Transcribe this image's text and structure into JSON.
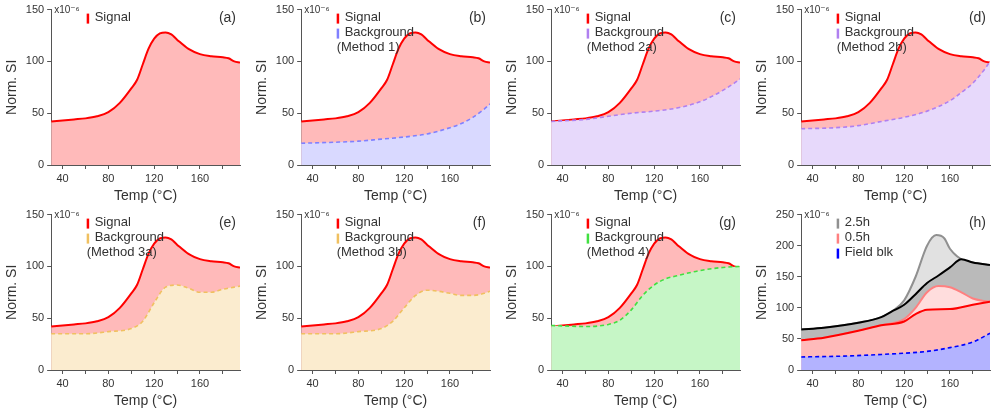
{
  "chart_data": [
    {
      "type": "area",
      "annotations": [
        "x10⁻⁶",
        "(a)"
      ],
      "xlabel": "Temp (°C)",
      "ylabel": "Norm. SI",
      "xlim": [
        30,
        195
      ],
      "ylim": [
        0,
        150
      ],
      "xticks": [
        40,
        {
          "value": 60,
          "label": null
        },
        80,
        {
          "value": 100,
          "label": null
        },
        120,
        {
          "value": 140,
          "label": null
        },
        160,
        {
          "value": 180,
          "label": null
        }
      ],
      "yticks": [
        0,
        50,
        100,
        150
      ],
      "grid": false,
      "legend": "top left",
      "marker": "none",
      "series": [
        {
          "name": "Signal",
          "color": "#ff0000",
          "line_style": "solid",
          "x": [
            30,
            40,
            50,
            60,
            70,
            80,
            90,
            100,
            105,
            110,
            115,
            120,
            125,
            130,
            135,
            140,
            150,
            160,
            170,
            180,
            185,
            190,
            195
          ],
          "values": [
            42,
            43,
            44,
            45,
            47,
            51,
            60,
            74,
            82,
            97,
            112,
            122,
            127,
            128,
            126,
            121,
            112,
            107,
            105,
            104,
            103,
            100,
            99
          ]
        }
      ]
    },
    {
      "type": "area",
      "annotations": [
        "x10⁻⁶",
        "(b)"
      ],
      "xlabel": "Temp (°C)",
      "ylabel": "Norm. SI",
      "xlim": [
        30,
        195
      ],
      "ylim": [
        0,
        150
      ],
      "xticks": [
        40,
        {
          "value": 60,
          "label": null
        },
        80,
        {
          "value": 100,
          "label": null
        },
        120,
        {
          "value": 140,
          "label": null
        },
        160,
        {
          "value": 180,
          "label": null
        }
      ],
      "yticks": [
        0,
        50,
        100,
        150
      ],
      "grid": false,
      "legend": "top left",
      "marker": "none",
      "series": [
        {
          "name": "Signal",
          "color": "#ff0000",
          "line_style": "solid",
          "x": [
            30,
            40,
            50,
            60,
            70,
            80,
            90,
            100,
            105,
            110,
            115,
            120,
            125,
            130,
            135,
            140,
            150,
            160,
            170,
            180,
            185,
            190,
            195
          ],
          "values": [
            42,
            43,
            44,
            45,
            47,
            51,
            60,
            74,
            82,
            97,
            112,
            122,
            127,
            128,
            126,
            121,
            112,
            107,
            105,
            104,
            103,
            100,
            99
          ]
        },
        {
          "name": "Background (Method 1)",
          "color": "#8080ff",
          "line_style": "dashed",
          "x": [
            30,
            60,
            80,
            100,
            120,
            140,
            160,
            170,
            180,
            190,
            195
          ],
          "values": [
            21,
            22,
            23,
            25,
            27,
            30,
            36,
            40,
            46,
            54,
            59
          ]
        }
      ]
    },
    {
      "type": "area",
      "annotations": [
        "x10⁻⁶",
        "(c)"
      ],
      "xlabel": "Temp (°C)",
      "ylabel": "Norm. SI",
      "xlim": [
        30,
        195
      ],
      "ylim": [
        0,
        150
      ],
      "xticks": [
        40,
        {
          "value": 60,
          "label": null
        },
        80,
        {
          "value": 100,
          "label": null
        },
        120,
        {
          "value": 140,
          "label": null
        },
        160,
        {
          "value": 180,
          "label": null
        }
      ],
      "yticks": [
        0,
        50,
        100,
        150
      ],
      "grid": false,
      "legend": "top left",
      "marker": "none",
      "series": [
        {
          "name": "Signal",
          "color": "#ff0000",
          "line_style": "solid",
          "x": [
            30,
            40,
            50,
            60,
            70,
            80,
            90,
            100,
            105,
            110,
            115,
            120,
            125,
            130,
            135,
            140,
            150,
            160,
            170,
            180,
            185,
            190,
            195
          ],
          "values": [
            42,
            43,
            44,
            45,
            47,
            51,
            60,
            74,
            82,
            97,
            112,
            122,
            127,
            128,
            126,
            121,
            112,
            107,
            105,
            104,
            103,
            100,
            99
          ]
        },
        {
          "name": "Background (Method 2a)",
          "color": "#b080f0",
          "line_style": "dashed",
          "x": [
            30,
            60,
            80,
            100,
            120,
            140,
            160,
            170,
            180,
            190,
            195
          ],
          "values": [
            42,
            44,
            47,
            50,
            52,
            55,
            61,
            66,
            72,
            79,
            83
          ]
        }
      ]
    },
    {
      "type": "area",
      "annotations": [
        "x10⁻⁶",
        "(d)"
      ],
      "xlabel": "Temp (°C)",
      "ylabel": "Norm. SI",
      "xlim": [
        30,
        195
      ],
      "ylim": [
        0,
        150
      ],
      "xticks": [
        40,
        {
          "value": 60,
          "label": null
        },
        80,
        {
          "value": 100,
          "label": null
        },
        120,
        {
          "value": 140,
          "label": null
        },
        160,
        {
          "value": 180,
          "label": null
        }
      ],
      "yticks": [
        0,
        50,
        100,
        150
      ],
      "grid": false,
      "legend": "top left",
      "marker": "none",
      "series": [
        {
          "name": "Signal",
          "color": "#ff0000",
          "line_style": "solid",
          "x": [
            30,
            40,
            50,
            60,
            70,
            80,
            90,
            100,
            105,
            110,
            115,
            120,
            125,
            130,
            135,
            140,
            150,
            160,
            170,
            180,
            185,
            190,
            195
          ],
          "values": [
            42,
            43,
            44,
            45,
            47,
            51,
            60,
            74,
            82,
            97,
            112,
            122,
            127,
            128,
            126,
            121,
            112,
            107,
            105,
            104,
            103,
            100,
            99
          ]
        },
        {
          "name": "Background (Method 2b)",
          "color": "#b080f0",
          "line_style": "dashed",
          "x": [
            30,
            60,
            80,
            100,
            120,
            140,
            160,
            170,
            180,
            190,
            195
          ],
          "values": [
            35,
            36,
            38,
            42,
            46,
            52,
            62,
            70,
            79,
            92,
            100
          ]
        }
      ]
    },
    {
      "type": "area",
      "annotations": [
        "x10⁻⁶",
        "(e)"
      ],
      "xlabel": "Temp (°C)",
      "ylabel": "Norm. SI",
      "xlim": [
        30,
        195
      ],
      "ylim": [
        0,
        150
      ],
      "xticks": [
        40,
        {
          "value": 60,
          "label": null
        },
        80,
        {
          "value": 100,
          "label": null
        },
        120,
        {
          "value": 140,
          "label": null
        },
        160,
        {
          "value": 180,
          "label": null
        }
      ],
      "yticks": [
        0,
        50,
        100,
        150
      ],
      "grid": false,
      "legend": "top left",
      "marker": "none",
      "series": [
        {
          "name": "Signal",
          "color": "#ff0000",
          "line_style": "solid",
          "x": [
            30,
            40,
            50,
            60,
            70,
            80,
            90,
            100,
            105,
            110,
            115,
            120,
            125,
            130,
            135,
            140,
            150,
            160,
            170,
            180,
            185,
            190,
            195
          ],
          "values": [
            42,
            43,
            44,
            45,
            47,
            51,
            60,
            74,
            82,
            97,
            112,
            122,
            127,
            128,
            126,
            121,
            112,
            107,
            105,
            104,
            103,
            100,
            99
          ]
        },
        {
          "name": "Background (Method 3a)",
          "color": "#f0c060",
          "line_style": "dashed",
          "x": [
            30,
            60,
            80,
            100,
            110,
            120,
            130,
            140,
            150,
            160,
            170,
            180,
            190,
            195
          ],
          "values": [
            35,
            35,
            37,
            40,
            47,
            65,
            80,
            82,
            79,
            75,
            75,
            78,
            80,
            81
          ]
        }
      ]
    },
    {
      "type": "area",
      "annotations": [
        "x10⁻⁶",
        "(f)"
      ],
      "xlabel": "Temp (°C)",
      "ylabel": "Norm. SI",
      "xlim": [
        30,
        195
      ],
      "ylim": [
        0,
        150
      ],
      "xticks": [
        40,
        {
          "value": 60,
          "label": null
        },
        80,
        {
          "value": 100,
          "label": null
        },
        120,
        {
          "value": 140,
          "label": null
        },
        160,
        {
          "value": 180,
          "label": null
        }
      ],
      "yticks": [
        0,
        50,
        100,
        150
      ],
      "grid": false,
      "legend": "top left",
      "marker": "none",
      "series": [
        {
          "name": "Signal",
          "color": "#ff0000",
          "line_style": "solid",
          "x": [
            30,
            40,
            50,
            60,
            70,
            80,
            90,
            100,
            105,
            110,
            115,
            120,
            125,
            130,
            135,
            140,
            150,
            160,
            170,
            180,
            185,
            190,
            195
          ],
          "values": [
            42,
            43,
            44,
            45,
            47,
            51,
            60,
            74,
            82,
            97,
            112,
            122,
            127,
            128,
            126,
            121,
            112,
            107,
            105,
            104,
            103,
            100,
            99
          ]
        },
        {
          "name": "Background (Method 3b)",
          "color": "#f0c060",
          "line_style": "dashed",
          "x": [
            30,
            60,
            80,
            100,
            110,
            120,
            130,
            140,
            150,
            160,
            170,
            180,
            190,
            195
          ],
          "values": [
            35,
            35,
            37,
            40,
            47,
            60,
            72,
            77,
            76,
            74,
            72,
            72,
            74,
            76
          ]
        }
      ]
    },
    {
      "type": "area",
      "annotations": [
        "x10⁻⁶",
        "(g)"
      ],
      "xlabel": "Temp (°C)",
      "ylabel": "Norm. SI",
      "xlim": [
        30,
        195
      ],
      "ylim": [
        0,
        150
      ],
      "xticks": [
        40,
        {
          "value": 60,
          "label": null
        },
        80,
        {
          "value": 100,
          "label": null
        },
        120,
        {
          "value": 140,
          "label": null
        },
        160,
        {
          "value": 180,
          "label": null
        }
      ],
      "yticks": [
        0,
        50,
        100,
        150
      ],
      "grid": false,
      "legend": "top left",
      "marker": "none",
      "series": [
        {
          "name": "Signal",
          "color": "#ff0000",
          "line_style": "solid",
          "x": [
            30,
            40,
            50,
            60,
            70,
            80,
            90,
            100,
            105,
            110,
            115,
            120,
            125,
            130,
            135,
            140,
            150,
            160,
            170,
            180,
            185,
            190,
            195
          ],
          "values": [
            42,
            43,
            44,
            45,
            47,
            51,
            60,
            74,
            82,
            97,
            112,
            122,
            127,
            128,
            126,
            121,
            112,
            107,
            105,
            104,
            103,
            100,
            99
          ]
        },
        {
          "name": "Background (Method 4)",
          "color": "#40e040",
          "line_style": "dashed",
          "x": [
            30,
            60,
            80,
            90,
            100,
            110,
            120,
            130,
            140,
            160,
            180,
            195
          ],
          "values": [
            43,
            42,
            44,
            48,
            58,
            72,
            82,
            88,
            91,
            96,
            99,
            100
          ]
        }
      ]
    },
    {
      "type": "area",
      "annotations": [
        "x10⁻⁶",
        "(h)"
      ],
      "xlabel": "Temp (°C)",
      "ylabel": "Norm. SI",
      "xlim": [
        30,
        195
      ],
      "ylim": [
        0,
        250
      ],
      "xticks": [
        40,
        {
          "value": 60,
          "label": null
        },
        80,
        {
          "value": 100,
          "label": null
        },
        120,
        {
          "value": 140,
          "label": null
        },
        160,
        {
          "value": 180,
          "label": null
        }
      ],
      "yticks": [
        0,
        50,
        100,
        150,
        200,
        250
      ],
      "grid": false,
      "legend": "top left",
      "marker": "none",
      "series": [
        {
          "name": "2.5h",
          "color": "#909090",
          "line_style": "solid",
          "x": [
            30,
            50,
            80,
            100,
            110,
            120,
            130,
            140,
            148,
            155,
            160,
            170,
            180,
            195
          ],
          "values": [
            65,
            68,
            76,
            85,
            95,
            112,
            150,
            200,
            217,
            212,
            195,
            178,
            173,
            169
          ]
        },
        {
          "color": "#000000",
          "line_style": "solid",
          "x": [
            30,
            50,
            80,
            100,
            110,
            120,
            130,
            140,
            150,
            160,
            170,
            180,
            195
          ],
          "values": [
            65,
            68,
            76,
            85,
            95,
            105,
            122,
            140,
            152,
            165,
            178,
            173,
            169
          ]
        },
        {
          "name": "0.5h",
          "color": "#ff8080",
          "line_style": "solid",
          "x": [
            30,
            50,
            80,
            100,
            120,
            130,
            140,
            150,
            160,
            170,
            180,
            190,
            195
          ],
          "values": [
            48,
            52,
            63,
            72,
            82,
            100,
            125,
            135,
            133,
            125,
            115,
            111,
            110
          ]
        },
        {
          "color": "#ff0000",
          "line_style": "solid",
          "x": [
            30,
            50,
            80,
            100,
            120,
            130,
            140,
            160,
            180,
            195
          ],
          "values": [
            48,
            52,
            63,
            72,
            78,
            90,
            97,
            98,
            105,
            110
          ]
        },
        {
          "name": "Field blk",
          "color": "#0000ff",
          "line_style": "dashed",
          "x": [
            30,
            60,
            100,
            140,
            160,
            180,
            195
          ],
          "values": [
            21,
            22,
            25,
            30,
            36,
            45,
            59
          ]
        }
      ]
    }
  ]
}
